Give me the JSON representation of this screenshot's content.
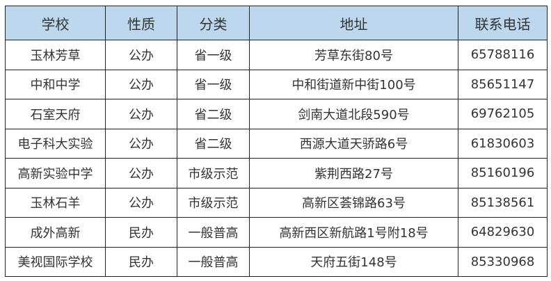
{
  "header_color": "#bdd7ee",
  "table": {
    "headers": [
      "学校",
      "性质",
      "分类",
      "地址",
      "联系电话"
    ],
    "rows": [
      [
        "玉林芳草",
        "公办",
        "省一级",
        "芳草东街80号",
        "65788116"
      ],
      [
        "中和中学",
        "公办",
        "省一级",
        "中和街道新中街100号",
        "85651147"
      ],
      [
        "石室天府",
        "公办",
        "省二级",
        "剑南大道北段590号",
        "69762105"
      ],
      [
        "电子科大实验",
        "公办",
        "省二级",
        "西源大道天骄路6号",
        "61830603"
      ],
      [
        "高新实验中学",
        "公办",
        "市级示范",
        "紫荆西路27号",
        "85160196"
      ],
      [
        "玉林石羊",
        "公办",
        "市级示范",
        "高新区荟锦路63号",
        "85138561"
      ],
      [
        "成外高新",
        "民办",
        "一般普高",
        "高新西区新航路1号附18号",
        "64829630"
      ],
      [
        "美视国际学校",
        "民办",
        "一般普高",
        "天府五街148号",
        "85330968"
      ]
    ]
  }
}
